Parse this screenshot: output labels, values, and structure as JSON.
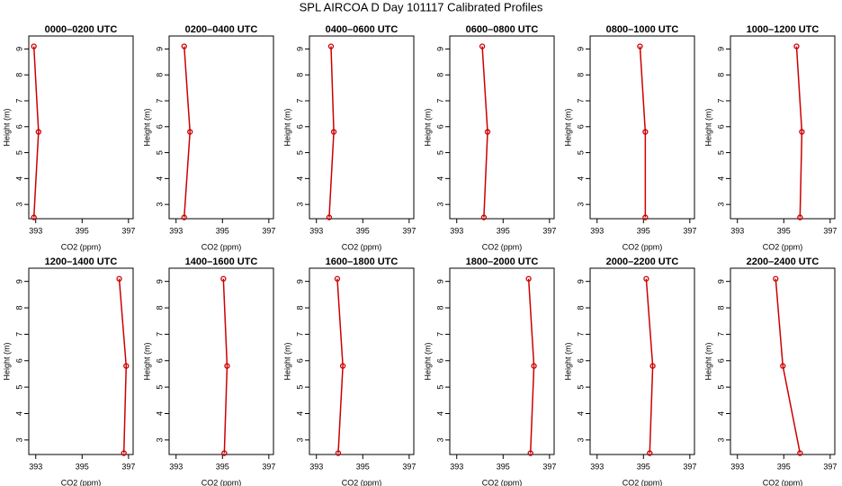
{
  "title": "SPL AIRCOA D  Day 101117  Calibrated Profiles",
  "chart_data": [
    {
      "type": "line",
      "title": "0000–0200 UTC",
      "xlabel": "CO2 (ppm)",
      "ylabel": "Height (m)",
      "color": "#cc0000",
      "xlim": [
        392.7,
        397.2
      ],
      "ylim": [
        2.45,
        9.5
      ],
      "xticks": [
        393,
        395,
        397
      ],
      "yticks": [
        3,
        4,
        5,
        6,
        7,
        8,
        9
      ],
      "x": [
        392.92,
        393.12,
        392.92
      ],
      "values": [
        2.5,
        5.8,
        9.1
      ]
    },
    {
      "type": "line",
      "title": "0200–0400 UTC",
      "xlabel": "CO2 (ppm)",
      "ylabel": "Height (m)",
      "color": "#cc0000",
      "xlim": [
        392.7,
        397.2
      ],
      "ylim": [
        2.45,
        9.5
      ],
      "xticks": [
        393,
        395,
        397
      ],
      "yticks": [
        3,
        4,
        5,
        6,
        7,
        8,
        9
      ],
      "x": [
        393.35,
        393.6,
        393.35
      ],
      "values": [
        2.5,
        5.8,
        9.1
      ]
    },
    {
      "type": "line",
      "title": "0400–0600 UTC",
      "xlabel": "CO2 (ppm)",
      "ylabel": "Height (m)",
      "color": "#cc0000",
      "xlim": [
        392.7,
        397.2
      ],
      "ylim": [
        2.45,
        9.5
      ],
      "xticks": [
        393,
        395,
        397
      ],
      "yticks": [
        3,
        4,
        5,
        6,
        7,
        8,
        9
      ],
      "x": [
        393.55,
        393.75,
        393.63
      ],
      "values": [
        2.5,
        5.8,
        9.1
      ]
    },
    {
      "type": "line",
      "title": "0600–0800 UTC",
      "xlabel": "CO2 (ppm)",
      "ylabel": "Height (m)",
      "color": "#cc0000",
      "xlim": [
        392.7,
        397.2
      ],
      "ylim": [
        2.45,
        9.5
      ],
      "xticks": [
        393,
        395,
        397
      ],
      "yticks": [
        3,
        4,
        5,
        6,
        7,
        8,
        9
      ],
      "x": [
        394.17,
        394.33,
        394.1
      ],
      "values": [
        2.5,
        5.8,
        9.1
      ]
    },
    {
      "type": "line",
      "title": "0800–1000 UTC",
      "xlabel": "CO2 (ppm)",
      "ylabel": "Height (m)",
      "color": "#cc0000",
      "xlim": [
        392.7,
        397.2
      ],
      "ylim": [
        2.45,
        9.5
      ],
      "xticks": [
        393,
        395,
        397
      ],
      "yticks": [
        3,
        4,
        5,
        6,
        7,
        8,
        9
      ],
      "x": [
        395.08,
        395.08,
        394.85
      ],
      "values": [
        2.5,
        5.8,
        9.1
      ]
    },
    {
      "type": "line",
      "title": "1000–1200 UTC",
      "xlabel": "CO2 (ppm)",
      "ylabel": "Height (m)",
      "color": "#cc0000",
      "xlim": [
        392.7,
        397.2
      ],
      "ylim": [
        2.45,
        9.5
      ],
      "xticks": [
        393,
        395,
        397
      ],
      "yticks": [
        3,
        4,
        5,
        6,
        7,
        8,
        9
      ],
      "x": [
        395.7,
        395.78,
        395.55
      ],
      "values": [
        2.5,
        5.8,
        9.1
      ]
    },
    {
      "type": "line",
      "title": "1200–1400 UTC",
      "xlabel": "CO2 (ppm)",
      "ylabel": "Height (m)",
      "color": "#cc0000",
      "xlim": [
        392.7,
        397.2
      ],
      "ylim": [
        2.45,
        9.5
      ],
      "xticks": [
        393,
        395,
        397
      ],
      "yticks": [
        3,
        4,
        5,
        6,
        7,
        8,
        9
      ],
      "x": [
        396.8,
        396.9,
        396.6
      ],
      "values": [
        2.5,
        5.8,
        9.1
      ]
    },
    {
      "type": "line",
      "title": "1400–1600 UTC",
      "xlabel": "CO2 (ppm)",
      "ylabel": "Height (m)",
      "color": "#cc0000",
      "xlim": [
        392.7,
        397.2
      ],
      "ylim": [
        2.45,
        9.5
      ],
      "xticks": [
        393,
        395,
        397
      ],
      "yticks": [
        3,
        4,
        5,
        6,
        7,
        8,
        9
      ],
      "x": [
        395.08,
        395.2,
        395.04
      ],
      "values": [
        2.5,
        5.8,
        9.1
      ]
    },
    {
      "type": "line",
      "title": "1600–1800 UTC",
      "xlabel": "CO2 (ppm)",
      "ylabel": "Height (m)",
      "color": "#cc0000",
      "xlim": [
        392.7,
        397.2
      ],
      "ylim": [
        2.45,
        9.5
      ],
      "xticks": [
        393,
        395,
        397
      ],
      "yticks": [
        3,
        4,
        5,
        6,
        7,
        8,
        9
      ],
      "x": [
        393.94,
        394.14,
        393.9
      ],
      "values": [
        2.5,
        5.8,
        9.1
      ]
    },
    {
      "type": "line",
      "title": "1800–2000 UTC",
      "xlabel": "CO2 (ppm)",
      "ylabel": "Height (m)",
      "color": "#cc0000",
      "xlim": [
        392.7,
        397.2
      ],
      "ylim": [
        2.45,
        9.5
      ],
      "xticks": [
        393,
        395,
        397
      ],
      "yticks": [
        3,
        4,
        5,
        6,
        7,
        8,
        9
      ],
      "x": [
        396.18,
        396.33,
        396.1
      ],
      "values": [
        2.5,
        5.8,
        9.1
      ]
    },
    {
      "type": "line",
      "title": "2000–2200 UTC",
      "xlabel": "CO2 (ppm)",
      "ylabel": "Height (m)",
      "color": "#cc0000",
      "xlim": [
        392.7,
        397.2
      ],
      "ylim": [
        2.45,
        9.5
      ],
      "xticks": [
        393,
        395,
        397
      ],
      "yticks": [
        3,
        4,
        5,
        6,
        7,
        8,
        9
      ],
      "x": [
        395.27,
        395.4,
        395.12
      ],
      "values": [
        2.5,
        5.8,
        9.1
      ]
    },
    {
      "type": "line",
      "title": "2200–2400 UTC",
      "xlabel": "CO2 (ppm)",
      "ylabel": "Height (m)",
      "color": "#cc0000",
      "xlim": [
        392.7,
        397.2
      ],
      "ylim": [
        2.45,
        9.5
      ],
      "xticks": [
        393,
        395,
        397
      ],
      "yticks": [
        3,
        4,
        5,
        6,
        7,
        8,
        9
      ],
      "x": [
        395.7,
        394.96,
        394.65
      ],
      "values": [
        2.5,
        5.8,
        9.1
      ]
    }
  ]
}
